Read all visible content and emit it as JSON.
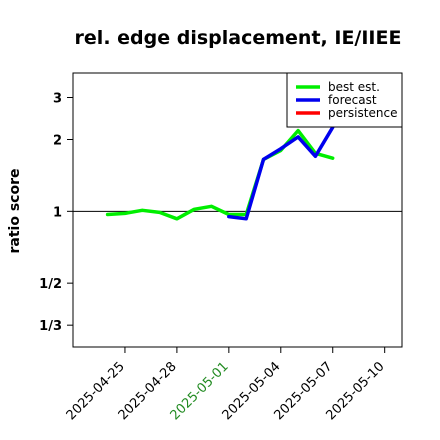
{
  "chart_data": {
    "type": "line",
    "title": "rel. edge displacement, IE/IIEE",
    "xlabel": "",
    "ylabel": "ratio score",
    "y_scale": "log",
    "ylim": [
      0.27,
      3.8
    ],
    "xlim": [
      "2025-04-22",
      "2025-05-11"
    ],
    "y_ticks": [
      {
        "value": 0.3333,
        "label": "1/3"
      },
      {
        "value": 0.5,
        "label": "1/2"
      },
      {
        "value": 1,
        "label": "1"
      },
      {
        "value": 2,
        "label": "2"
      },
      {
        "value": 3,
        "label": "3"
      }
    ],
    "x_ticks": [
      {
        "date": "2025-04-25",
        "label": "2025-04-25",
        "color": "#000000"
      },
      {
        "date": "2025-04-28",
        "label": "2025-04-28",
        "color": "#000000"
      },
      {
        "date": "2025-05-01",
        "label": "2025-05-01",
        "color": "#228B22"
      },
      {
        "date": "2025-05-04",
        "label": "2025-05-04",
        "color": "#000000"
      },
      {
        "date": "2025-05-07",
        "label": "2025-05-07",
        "color": "#000000"
      },
      {
        "date": "2025-05-10",
        "label": "2025-05-10",
        "color": "#000000"
      }
    ],
    "reference_line": 1,
    "legend_position": "top-right",
    "series": [
      {
        "name": "best est.",
        "color": "#00ee00",
        "points": [
          {
            "x": "2025-04-24",
            "y": 0.97
          },
          {
            "x": "2025-04-25",
            "y": 0.98
          },
          {
            "x": "2025-04-26",
            "y": 1.01
          },
          {
            "x": "2025-04-27",
            "y": 0.99
          },
          {
            "x": "2025-04-28",
            "y": 0.93
          },
          {
            "x": "2025-04-29",
            "y": 1.02
          },
          {
            "x": "2025-04-30",
            "y": 1.05
          },
          {
            "x": "2025-05-01",
            "y": 0.97
          },
          {
            "x": "2025-05-02",
            "y": 0.97
          },
          {
            "x": "2025-05-03",
            "y": 1.65
          },
          {
            "x": "2025-05-04",
            "y": 1.8
          },
          {
            "x": "2025-05-05",
            "y": 2.18
          },
          {
            "x": "2025-05-06",
            "y": 1.75
          },
          {
            "x": "2025-05-07",
            "y": 1.67
          }
        ]
      },
      {
        "name": "forecast",
        "color": "#0000ee",
        "points": [
          {
            "x": "2025-05-01",
            "y": 0.95
          },
          {
            "x": "2025-05-02",
            "y": 0.93
          },
          {
            "x": "2025-05-03",
            "y": 1.65
          },
          {
            "x": "2025-05-04",
            "y": 1.83
          },
          {
            "x": "2025-05-05",
            "y": 2.05
          },
          {
            "x": "2025-05-06",
            "y": 1.7
          },
          {
            "x": "2025-05-07",
            "y": 2.25
          }
        ]
      },
      {
        "name": "persistence",
        "color": "#ff0000",
        "points": []
      }
    ]
  }
}
